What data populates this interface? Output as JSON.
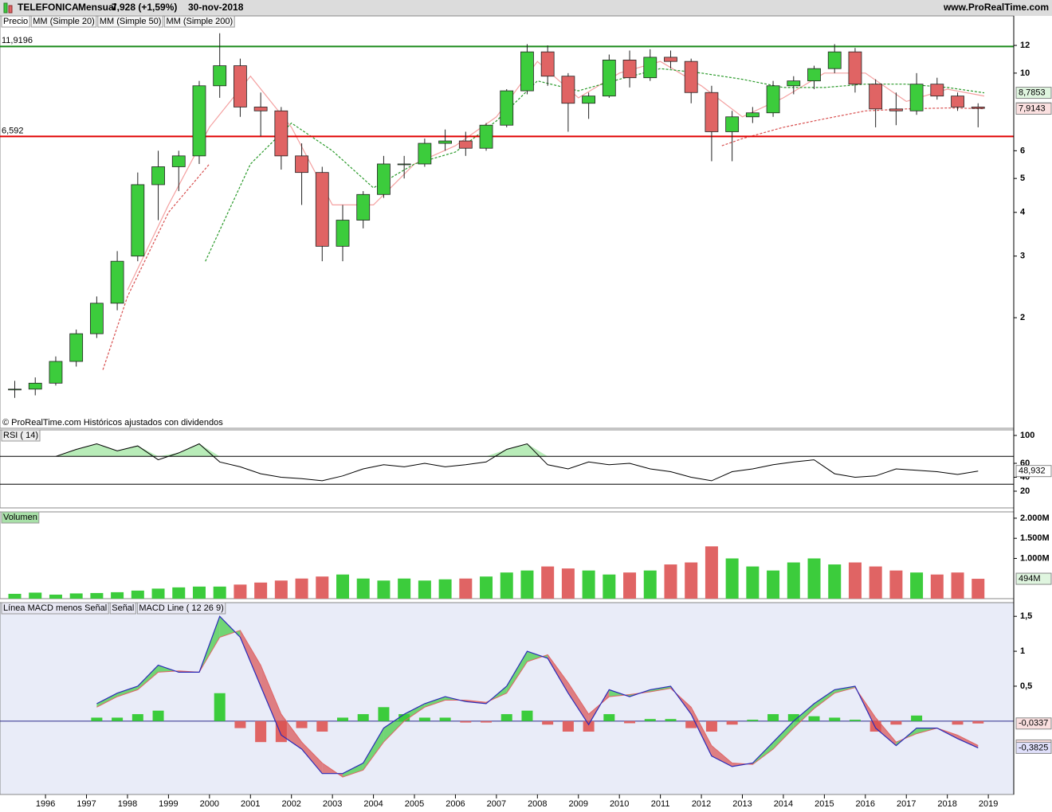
{
  "header": {
    "symbol": "TELEFONICA",
    "period": "Mensual",
    "price": "7,928 (+1,59%)",
    "date": "30-nov-2018",
    "site": "www.ProRealTime.com"
  },
  "chart_data": [
    {
      "type": "candlestick",
      "name": "Precio",
      "log_scale": true,
      "footnote": "© ProRealTime.com  Históricos ajustados con dividendos",
      "x": [
        1995.25,
        1995.75,
        1996.25,
        1996.75,
        1997.25,
        1997.75,
        1998.25,
        1998.75,
        1999.25,
        1999.75,
        2000.25,
        2000.75,
        2001.25,
        2001.75,
        2002.25,
        2002.75,
        2003.25,
        2003.75,
        2004.25,
        2004.75,
        2005.25,
        2005.75,
        2006.25,
        2006.75,
        2007.25,
        2007.75,
        2008.25,
        2008.75,
        2009.25,
        2009.75,
        2010.25,
        2010.75,
        2011.25,
        2011.75,
        2012.25,
        2012.75,
        2013.25,
        2013.75,
        2014.25,
        2014.75,
        2015.25,
        2015.75,
        2016.25,
        2016.75,
        2017.25,
        2017.75,
        2018.25,
        2018.75
      ],
      "open": [
        1.25,
        1.25,
        1.3,
        1.5,
        1.8,
        2.2,
        3.0,
        4.8,
        5.4,
        5.8,
        9.2,
        10.5,
        8.0,
        7.8,
        5.8,
        5.2,
        3.2,
        3.8,
        4.5,
        5.5,
        5.5,
        6.3,
        6.4,
        6.1,
        7.1,
        8.9,
        11.5,
        9.8,
        8.2,
        8.6,
        10.9,
        9.7,
        11.1,
        10.8,
        8.8,
        6.8,
        7.5,
        7.7,
        9.2,
        9.5,
        10.3,
        11.5,
        9.3,
        7.9,
        7.8,
        9.3,
        8.6,
        8.0
      ],
      "high": [
        1.32,
        1.35,
        1.55,
        1.85,
        2.3,
        3.1,
        5.2,
        6.0,
        6.0,
        9.5,
        13.0,
        11.0,
        8.8,
        8.0,
        6.3,
        5.4,
        4.2,
        4.6,
        5.8,
        5.8,
        6.5,
        6.9,
        6.8,
        7.2,
        9.0,
        12.1,
        12.0,
        10.0,
        8.8,
        11.3,
        11.6,
        11.7,
        11.6,
        11.0,
        9.2,
        7.8,
        8.0,
        9.5,
        9.8,
        10.5,
        12.1,
        11.8,
        9.6,
        8.8,
        10.0,
        9.7,
        8.8,
        8.2
      ],
      "low": [
        1.18,
        1.2,
        1.28,
        1.45,
        1.75,
        2.1,
        2.9,
        3.8,
        4.6,
        5.5,
        8.5,
        7.5,
        6.6,
        5.3,
        4.2,
        2.9,
        2.9,
        3.6,
        4.4,
        5.0,
        5.4,
        6.0,
        5.8,
        6.0,
        7.0,
        8.7,
        9.2,
        6.8,
        7.4,
        8.5,
        9.1,
        9.5,
        10.3,
        8.2,
        5.6,
        5.6,
        7.2,
        7.5,
        8.7,
        9.0,
        10.0,
        8.8,
        7.0,
        7.1,
        7.6,
        8.4,
        7.8,
        7.0
      ],
      "close": [
        1.25,
        1.3,
        1.5,
        1.8,
        2.2,
        2.9,
        4.8,
        5.4,
        5.8,
        9.2,
        10.5,
        8.0,
        7.8,
        5.8,
        5.2,
        3.2,
        3.8,
        4.5,
        5.5,
        5.5,
        6.3,
        6.4,
        6.1,
        7.1,
        8.9,
        11.5,
        9.8,
        8.2,
        8.6,
        10.9,
        9.7,
        11.1,
        10.8,
        8.8,
        6.8,
        7.5,
        7.7,
        9.2,
        9.5,
        10.3,
        11.5,
        9.3,
        7.9,
        7.8,
        9.3,
        8.6,
        8.0,
        7.928
      ],
      "up_color": "#3ccc3c",
      "down_color": "#e06464",
      "moving_averages": [
        {
          "name": "MM (Simple 20)",
          "color": "#f4a0a0",
          "x": [
            1998,
            1999,
            2000,
            2001,
            2002,
            2003,
            2004,
            2005,
            2006,
            2007,
            2008,
            2009,
            2010,
            2011,
            2012,
            2013,
            2014,
            2015,
            2016,
            2017,
            2018,
            2018.9
          ],
          "values": [
            2.4,
            4.2,
            7.0,
            9.8,
            7.0,
            4.2,
            4.2,
            5.5,
            6.2,
            7.5,
            10.8,
            8.5,
            10.0,
            10.8,
            9.2,
            7.5,
            8.5,
            10.0,
            10.0,
            8.3,
            9.0,
            8.6
          ]
        },
        {
          "name": "MM (Simple 50)",
          "color": "#2a9a2a",
          "x": [
            1999.9,
            2001,
            2002,
            2003,
            2004,
            2005,
            2006,
            2007,
            2008,
            2009,
            2010,
            2011,
            2012,
            2013,
            2014,
            2015,
            2016,
            2017,
            2018,
            2018.9
          ],
          "values": [
            2.9,
            5.5,
            7.2,
            6.0,
            4.7,
            5.5,
            5.95,
            7.3,
            9.5,
            8.9,
            9.6,
            10.3,
            10.0,
            9.6,
            9.1,
            9.1,
            9.3,
            9.3,
            9.1,
            8.7853
          ]
        },
        {
          "name": "MM (Simple 200)",
          "color": "#d85050",
          "x": [
            1997.4,
            1998,
            1999,
            2000,
            2005,
            2012.5,
            2013,
            2014,
            2015,
            2016,
            2017,
            2018,
            2018.9
          ],
          "values": [
            1.42,
            2.3,
            4.0,
            5.5,
            null,
            6.2,
            6.5,
            7.0,
            7.4,
            7.8,
            7.9,
            7.95,
            7.9143
          ]
        }
      ],
      "levels": [
        {
          "value": 11.9196,
          "label": "11,9196",
          "color": "#1a8a1a"
        },
        {
          "value": 6.592,
          "label": "6,592",
          "color": "#e00000"
        }
      ],
      "tags": [
        {
          "value": 8.7853,
          "label": "8,7853",
          "color": "#dff5df"
        },
        {
          "value": 7.928,
          "label": "7,928",
          "color": "#ffd21f"
        },
        {
          "value": 7.9143,
          "label": "7,9143",
          "color": "#fbe0e0"
        }
      ],
      "xlim": [
        1994.89,
        2019.62
      ],
      "ylim": [
        0.966,
        14.57
      ],
      "yticks": [
        2,
        3,
        4,
        5,
        6,
        10,
        12
      ]
    },
    {
      "type": "line",
      "title": "RSI ( 14)",
      "color": "#000000",
      "x": [
        1995.25,
        1995.75,
        1996.25,
        1996.75,
        1997.25,
        1997.75,
        1998.25,
        1998.75,
        1999.25,
        1999.75,
        2000.25,
        2000.75,
        2001.25,
        2001.75,
        2002.25,
        2002.75,
        2003.25,
        2003.75,
        2004.25,
        2004.75,
        2005.25,
        2005.75,
        2006.25,
        2006.75,
        2007.25,
        2007.75,
        2008.25,
        2008.75,
        2009.25,
        2009.75,
        2010.25,
        2010.75,
        2011.25,
        2011.75,
        2012.25,
        2012.75,
        2013.25,
        2013.75,
        2014.25,
        2014.75,
        2015.25,
        2015.75,
        2016.25,
        2016.75,
        2017.25,
        2017.75,
        2018.25,
        2018.75
      ],
      "values": [
        null,
        null,
        70,
        80,
        88,
        78,
        85,
        65,
        75,
        88,
        62,
        55,
        45,
        40,
        38,
        35,
        42,
        52,
        58,
        55,
        60,
        55,
        58,
        62,
        80,
        88,
        58,
        52,
        62,
        58,
        60,
        52,
        48,
        40,
        35,
        48,
        52,
        58,
        62,
        65,
        45,
        40,
        42,
        52,
        50,
        48,
        44,
        48.932
      ],
      "levels": [
        70,
        30
      ],
      "overbought_color": "#b8ecb8",
      "oversold_color": "#f4b8b8",
      "tags": [
        {
          "value": 48.932,
          "label": "48,932",
          "color": "#ffffff"
        }
      ],
      "xlim": [
        1994.89,
        2019.62
      ],
      "ylim": [
        -4,
        108
      ],
      "yticks": [
        20,
        40,
        60,
        100
      ]
    },
    {
      "type": "bar",
      "title": "Volumen",
      "x": [
        1995.25,
        1995.75,
        1996.25,
        1996.75,
        1997.25,
        1997.75,
        1998.25,
        1998.75,
        1999.25,
        1999.75,
        2000.25,
        2000.75,
        2001.25,
        2001.75,
        2002.25,
        2002.75,
        2003.25,
        2003.75,
        2004.25,
        2004.75,
        2005.25,
        2005.75,
        2006.25,
        2006.75,
        2007.25,
        2007.75,
        2008.25,
        2008.75,
        2009.25,
        2009.75,
        2010.25,
        2010.75,
        2011.25,
        2011.75,
        2012.25,
        2012.75,
        2013.25,
        2013.75,
        2014.25,
        2014.75,
        2015.25,
        2015.75,
        2016.25,
        2016.75,
        2017.25,
        2017.75,
        2018.25,
        2018.75
      ],
      "values": [
        120,
        150,
        100,
        130,
        140,
        160,
        200,
        250,
        280,
        300,
        300,
        350,
        400,
        450,
        500,
        550,
        600,
        500,
        450,
        500,
        450,
        480,
        500,
        550,
        650,
        700,
        800,
        750,
        700,
        600,
        650,
        700,
        850,
        900,
        1300,
        1000,
        800,
        700,
        900,
        1000,
        850,
        900,
        800,
        700,
        650,
        600,
        650,
        494
      ],
      "up_color": "#3ccc3c",
      "down_color": "#e06464",
      "tags": [
        {
          "value": 494,
          "label": "494M",
          "color": "#dff5df"
        }
      ],
      "xlim": [
        1994.89,
        2019.62
      ],
      "ylim": [
        0,
        2157
      ],
      "yticks": [
        {
          "value": 1000,
          "label": "1.000M"
        },
        {
          "value": 1500,
          "label": "1.500M"
        },
        {
          "value": 2000,
          "label": "2.000M"
        }
      ]
    },
    {
      "type": "macd",
      "x": [
        1995.25,
        1995.75,
        1996.25,
        1996.75,
        1997.25,
        1997.75,
        1998.25,
        1998.75,
        1999.25,
        1999.75,
        2000.25,
        2000.75,
        2001.25,
        2001.75,
        2002.25,
        2002.75,
        2003.25,
        2003.75,
        2004.25,
        2004.75,
        2005.25,
        2005.75,
        2006.25,
        2006.75,
        2007.25,
        2007.75,
        2008.25,
        2008.75,
        2009.25,
        2009.75,
        2010.25,
        2010.75,
        2011.25,
        2011.75,
        2012.25,
        2012.75,
        2013.25,
        2013.75,
        2014.25,
        2014.75,
        2015.25,
        2015.75,
        2016.25,
        2016.75,
        2017.25,
        2017.75,
        2018.25,
        2018.75
      ],
      "series": [
        {
          "name": "Línea MACD menos Señal",
          "color": "#e06464",
          "up_color": "#3ccc3c",
          "values": [
            null,
            null,
            null,
            null,
            0.05,
            0.05,
            0.1,
            0.15,
            0.0,
            0.0,
            0.4,
            -0.1,
            -0.3,
            -0.3,
            -0.1,
            -0.15,
            0.05,
            0.1,
            0.2,
            0.1,
            0.05,
            0.05,
            -0.02,
            -0.02,
            0.1,
            0.15,
            -0.05,
            -0.15,
            -0.15,
            0.1,
            -0.03,
            0.03,
            0.03,
            -0.1,
            -0.15,
            -0.05,
            0.02,
            0.1,
            0.1,
            0.07,
            0.05,
            0.02,
            -0.15,
            -0.05,
            0.08,
            0.0,
            -0.05,
            -0.0337
          ]
        },
        {
          "name": "Señal",
          "color": "#e06464",
          "values": [
            null,
            null,
            null,
            null,
            0.2,
            0.35,
            0.45,
            0.7,
            0.72,
            0.7,
            1.2,
            1.3,
            0.8,
            0.1,
            -0.3,
            -0.6,
            -0.8,
            -0.7,
            -0.3,
            0.0,
            0.2,
            0.3,
            0.3,
            0.27,
            0.4,
            0.85,
            0.95,
            0.55,
            0.1,
            0.35,
            0.38,
            0.42,
            0.47,
            0.2,
            -0.35,
            -0.6,
            -0.62,
            -0.4,
            -0.1,
            0.18,
            0.4,
            0.48,
            0.05,
            -0.3,
            -0.18,
            -0.1,
            -0.2,
            -0.3488
          ]
        },
        {
          "name": "MACD Line ( 12 26 9)",
          "color": "#2a2ab8",
          "values": [
            null,
            null,
            null,
            null,
            0.25,
            0.4,
            0.5,
            0.8,
            0.7,
            0.7,
            1.5,
            1.2,
            0.5,
            -0.2,
            -0.4,
            -0.75,
            -0.75,
            -0.6,
            -0.1,
            0.1,
            0.25,
            0.35,
            0.28,
            0.25,
            0.5,
            1.0,
            0.9,
            0.4,
            -0.05,
            0.45,
            0.35,
            0.45,
            0.5,
            0.1,
            -0.5,
            -0.65,
            -0.6,
            -0.3,
            0.0,
            0.25,
            0.45,
            0.5,
            -0.1,
            -0.35,
            -0.1,
            -0.1,
            -0.25,
            -0.3825
          ]
        }
      ],
      "fill_up_color": "#3ccc3c",
      "fill_down_color": "#d85050",
      "zero_line": true,
      "tags": [
        {
          "value": -0.0337,
          "label": "-0,0337",
          "color": "#fbe0e0"
        },
        {
          "value": -0.3488,
          "label": "-0,3488",
          "color": "#fbe0e0"
        },
        {
          "value": -0.3825,
          "label": "-0,3825",
          "color": "#e0e0fb"
        }
      ],
      "xlim": [
        1994.89,
        2019.62
      ],
      "ylim": [
        -1.05,
        1.696
      ],
      "yticks": [
        {
          "value": 0.5,
          "label": "0,5"
        },
        1,
        {
          "value": 1.5,
          "label": "1,5"
        }
      ],
      "xticks": [
        1996,
        1997,
        1998,
        1999,
        2000,
        2001,
        2002,
        2003,
        2004,
        2005,
        2006,
        2007,
        2008,
        2009,
        2010,
        2011,
        2012,
        2013,
        2014,
        2015,
        2016,
        2017,
        2018,
        2019
      ]
    }
  ]
}
